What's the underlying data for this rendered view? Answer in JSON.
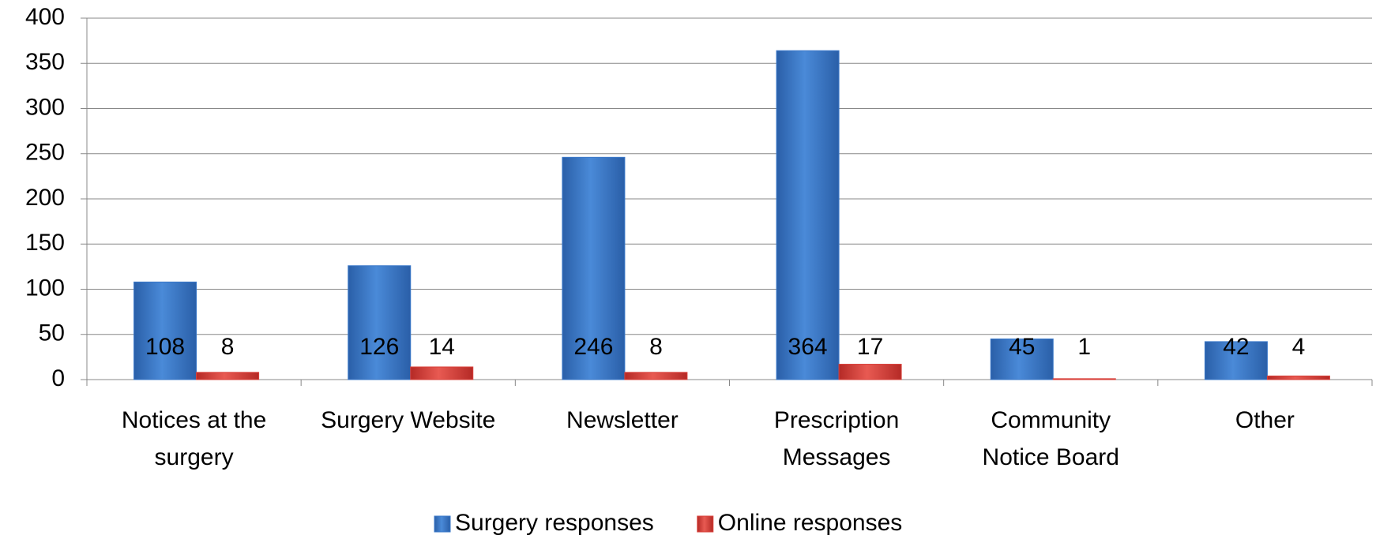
{
  "chart_data": {
    "type": "bar",
    "categories": [
      "Notices at the surgery",
      "Surgery Website",
      "Newsletter",
      "Prescription Messages",
      "Community Notice Board",
      "Other"
    ],
    "series": [
      {
        "name": "Surgery responses",
        "color": "#3a78c9",
        "values": [
          108,
          126,
          246,
          364,
          45,
          42
        ]
      },
      {
        "name": "Online responses",
        "color": "#d9403a",
        "values": [
          8,
          14,
          8,
          17,
          1,
          4
        ]
      }
    ],
    "ylim": [
      0,
      400
    ],
    "yticks": [
      0,
      50,
      100,
      150,
      200,
      250,
      300,
      350,
      400
    ],
    "grid": true,
    "legend": "bottom"
  }
}
